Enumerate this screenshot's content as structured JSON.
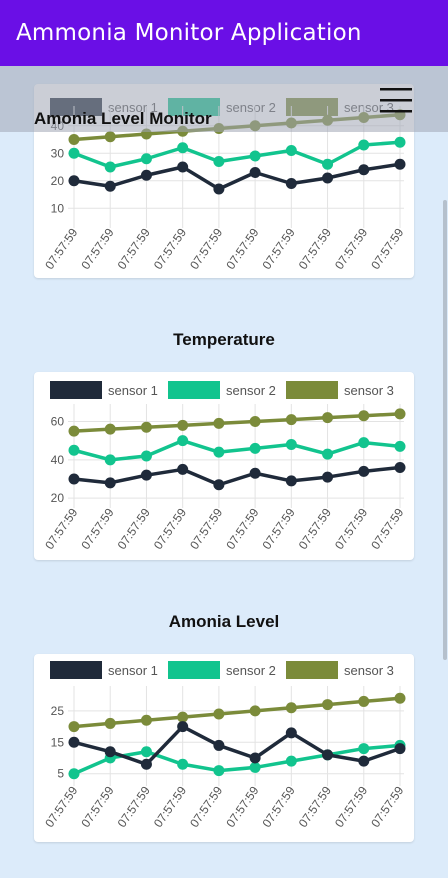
{
  "app": {
    "title": "Ammonia Monitor Application"
  },
  "colors": {
    "app_bar": "#6a0fe6",
    "background": "#dcebfa",
    "sensor1": "#1f2a3a",
    "sensor2": "#12c48e",
    "sensor3": "#7b8b3a"
  },
  "menu": {
    "icon": "hamburger-menu-icon"
  },
  "chart_data": [
    {
      "type": "line",
      "title": "Amonia Level Monitor",
      "x": [
        "07:57:59",
        "07:57:59",
        "07:57:59",
        "07:57:59",
        "07:57:59",
        "07:57:59",
        "07:57:59",
        "07:57:59",
        "07:57:59",
        "07:57:59"
      ],
      "series": [
        {
          "name": "sensor 1",
          "values": [
            20,
            18,
            22,
            25,
            17,
            23,
            19,
            21,
            24,
            26
          ]
        },
        {
          "name": "sensor 2",
          "values": [
            30,
            25,
            28,
            32,
            27,
            29,
            31,
            26,
            33,
            34
          ]
        },
        {
          "name": "sensor 3",
          "values": [
            35,
            36,
            37,
            38,
            39,
            40,
            41,
            42,
            43,
            44
          ]
        }
      ],
      "yticks": [
        10,
        20,
        30,
        40
      ],
      "ylim": [
        5,
        45
      ],
      "legend": "top",
      "grid": true
    },
    {
      "type": "line",
      "title": "Temperature",
      "x": [
        "07:57:59",
        "07:57:59",
        "07:57:59",
        "07:57:59",
        "07:57:59",
        "07:57:59",
        "07:57:59",
        "07:57:59",
        "07:57:59",
        "07:57:59"
      ],
      "series": [
        {
          "name": "sensor 1",
          "values": [
            30,
            28,
            32,
            35,
            27,
            33,
            29,
            31,
            34,
            36
          ]
        },
        {
          "name": "sensor 2",
          "values": [
            45,
            40,
            42,
            50,
            44,
            46,
            48,
            43,
            49,
            47
          ]
        },
        {
          "name": "sensor 3",
          "values": [
            55,
            56,
            57,
            58,
            59,
            60,
            61,
            62,
            63,
            64
          ]
        }
      ],
      "yticks": [
        20,
        40,
        60
      ],
      "ylim": [
        18,
        66
      ],
      "legend": "top",
      "grid": true
    },
    {
      "type": "line",
      "title": "Amonia Level",
      "x": [
        "07:57:59",
        "07:57:59",
        "07:57:59",
        "07:57:59",
        "07:57:59",
        "07:57:59",
        "07:57:59",
        "07:57:59",
        "07:57:59",
        "07:57:59"
      ],
      "series": [
        {
          "name": "sensor 1",
          "values": [
            15,
            12,
            8,
            20,
            14,
            10,
            18,
            11,
            9,
            13
          ]
        },
        {
          "name": "sensor 2",
          "values": [
            5,
            10,
            12,
            8,
            6,
            7,
            9,
            11,
            13,
            14
          ]
        },
        {
          "name": "sensor 3",
          "values": [
            20,
            21,
            22,
            23,
            24,
            25,
            26,
            27,
            28,
            29
          ]
        }
      ],
      "yticks": [
        5,
        15,
        25
      ],
      "ylim": [
        3,
        31
      ],
      "legend": "top",
      "grid": true
    }
  ]
}
